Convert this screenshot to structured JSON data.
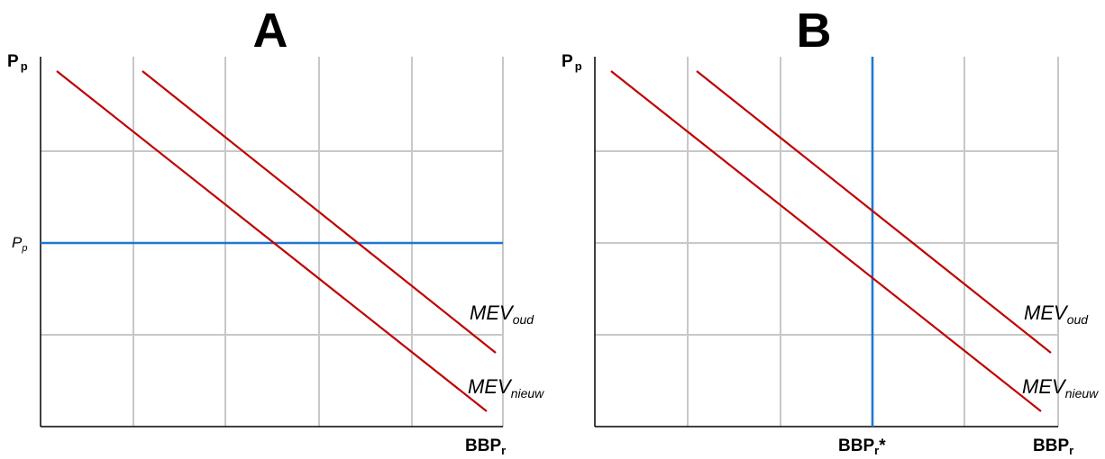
{
  "panel_a": {
    "title": "A",
    "y_axis": {
      "main": "P",
      "sub": "p"
    },
    "x_axis": {
      "main": "BBP",
      "sub": "r"
    },
    "price_level_label": {
      "main": "P",
      "sub": "p"
    },
    "curves": [
      {
        "main": "MEV",
        "sub": "oud",
        "color": "#c00000"
      },
      {
        "main": "MEV",
        "sub": "nieuw",
        "color": "#c00000"
      }
    ],
    "horizontal_line_color": "#1f77d0"
  },
  "panel_b": {
    "title": "B",
    "y_axis": {
      "main": "P",
      "sub": "p"
    },
    "x_axis": {
      "main": "BBP",
      "sub": "r"
    },
    "x_marker_label": {
      "main": "BBP",
      "sub": "r",
      "suffix": "*"
    },
    "curves": [
      {
        "main": "MEV",
        "sub": "oud",
        "color": "#c00000"
      },
      {
        "main": "MEV",
        "sub": "nieuw",
        "color": "#c00000"
      }
    ],
    "vertical_line_color": "#1f77d0"
  },
  "colors": {
    "grid": "#c8c8c8",
    "axis": "#000000",
    "demand": "#c00000",
    "supply": "#1f77d0"
  }
}
